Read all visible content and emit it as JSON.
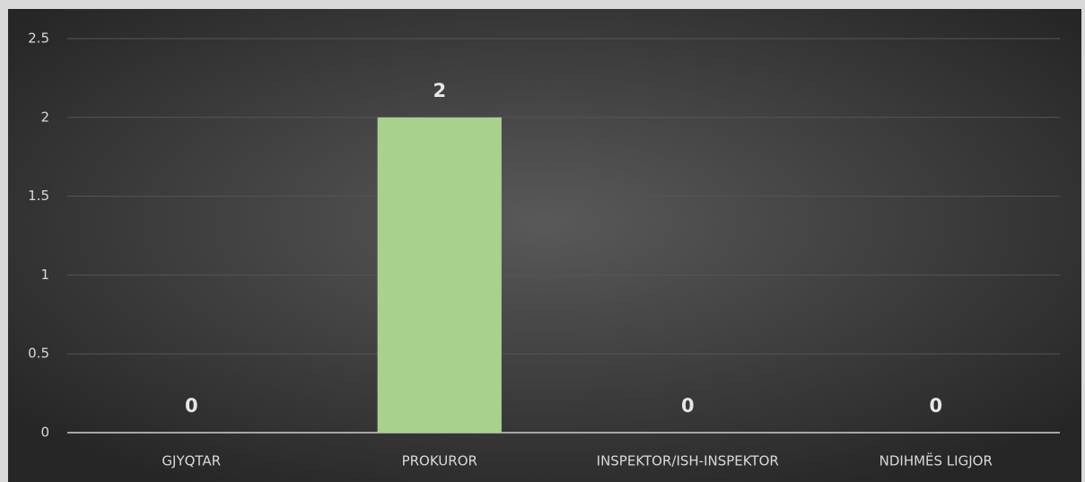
{
  "chart_data": {
    "type": "bar",
    "categories": [
      "GJYQTAR",
      "PROKUROR",
      "INSPEKTOR/ISH-INSPEKTOR",
      "NDIHMËS LIGJOR"
    ],
    "values": [
      0,
      2,
      0,
      0
    ],
    "color": "#a9d18e",
    "ylim": [
      0,
      2.5
    ],
    "yticks": [
      0,
      0.5,
      1,
      1.5,
      2,
      2.5
    ],
    "grid": true,
    "data_labels": true
  }
}
